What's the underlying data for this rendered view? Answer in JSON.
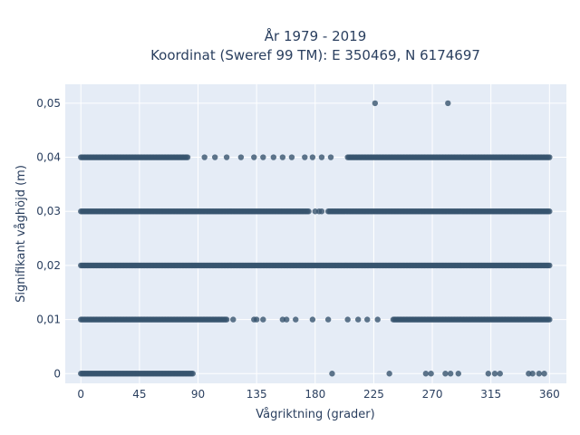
{
  "chart_data": {
    "type": "scatter",
    "title": "År 1979 - 2019",
    "subtitle": "Koordinat (Sweref 99 TM): E 350469, N 6174697",
    "xlabel": "Vågriktning (grader)",
    "ylabel": "Signifikant våghöjd (m)",
    "xlim": [
      -12,
      373
    ],
    "ylim": [
      -0.0018,
      0.0535
    ],
    "x_ticks": [
      0,
      45,
      90,
      135,
      180,
      225,
      270,
      315,
      360
    ],
    "y_ticks": [
      0,
      0.01,
      0.02,
      0.03,
      0.04,
      0.05
    ],
    "x_tick_labels": [
      "0",
      "45",
      "90",
      "135",
      "180",
      "225",
      "270",
      "315",
      "360"
    ],
    "y_tick_labels": [
      "0",
      "0,01",
      "0,02",
      "0,03",
      "0,04",
      "0,05"
    ],
    "grid": true,
    "legend": "none",
    "marker_color": "#37546e",
    "plot_bg": "#e5ecf6",
    "series": [
      {
        "values_hint": "dense direction bands",
        "points_by_height": {
          "0": {
            "dense_ranges": [
              [
                0,
                86
              ]
            ],
            "scattered": [
              193,
              237,
              265,
              269,
              280,
              284,
              290,
              313,
              318,
              322,
              344,
              347,
              352,
              356
            ]
          },
          "0.01": {
            "dense_ranges": [
              [
                0,
                112
              ],
              [
                240,
                360
              ]
            ],
            "scattered": [
              117,
              133,
              135,
              140,
              155,
              158,
              165,
              178,
              190,
              205,
              213,
              220,
              228
            ]
          },
          "0.02": {
            "dense_ranges": [
              [
                0,
                360
              ]
            ],
            "scattered": []
          },
          "0.03": {
            "dense_ranges": [
              [
                0,
                175
              ],
              [
                190,
                360
              ]
            ],
            "scattered": [
              180,
              183,
              185
            ]
          },
          "0.04": {
            "dense_ranges": [
              [
                0,
                82
              ],
              [
                205,
                360
              ]
            ],
            "scattered": [
              95,
              103,
              112,
              123,
              133,
              140,
              148,
              155,
              162,
              172,
              178,
              185,
              192
            ]
          },
          "0.05": {
            "dense_ranges": [],
            "scattered": [
              226,
              282
            ]
          }
        }
      }
    ]
  }
}
